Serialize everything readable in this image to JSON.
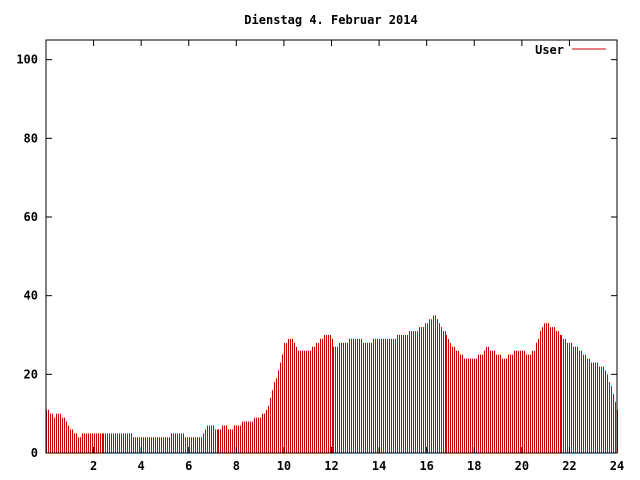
{
  "chart_data": {
    "type": "bar",
    "title": "Dienstag 4. Februar 2014",
    "xlabel": "",
    "ylabel": "",
    "xlim": [
      0,
      24
    ],
    "ylim": [
      0,
      105
    ],
    "xticks": [
      2,
      4,
      6,
      8,
      10,
      12,
      14,
      16,
      18,
      20,
      22,
      24
    ],
    "xtick_labels": [
      "2",
      "4",
      "6",
      "8",
      "10",
      "12",
      "14",
      "16",
      "18",
      "20",
      "22",
      "24"
    ],
    "yticks": [
      0,
      20,
      40,
      60,
      80,
      100
    ],
    "ytick_labels": [
      "0",
      "20",
      "40",
      "60",
      "80",
      "100"
    ],
    "grid": false,
    "legend_position": "top-right",
    "series": [
      {
        "name": "User",
        "color": "#cc0000",
        "keyframes": [
          [
            0.0,
            11
          ],
          [
            0.2,
            10
          ],
          [
            0.3,
            9
          ],
          [
            0.5,
            10
          ],
          [
            0.7,
            9
          ],
          [
            0.9,
            7
          ],
          [
            1.0,
            6
          ],
          [
            1.2,
            5
          ],
          [
            1.4,
            4
          ],
          [
            1.6,
            5
          ],
          [
            2.0,
            5
          ],
          [
            3.0,
            5
          ],
          [
            3.5,
            5
          ],
          [
            3.7,
            4
          ],
          [
            4.0,
            4
          ],
          [
            4.5,
            4
          ],
          [
            5.0,
            4
          ],
          [
            5.5,
            5
          ],
          [
            6.0,
            4
          ],
          [
            6.5,
            4
          ],
          [
            6.8,
            7
          ],
          [
            7.2,
            6
          ],
          [
            7.5,
            7
          ],
          [
            7.8,
            6
          ],
          [
            8.0,
            7
          ],
          [
            8.5,
            8
          ],
          [
            9.0,
            9
          ],
          [
            9.3,
            11
          ],
          [
            9.5,
            16
          ],
          [
            9.8,
            22
          ],
          [
            10.0,
            28
          ],
          [
            10.3,
            29
          ],
          [
            10.6,
            26
          ],
          [
            11.0,
            26
          ],
          [
            11.4,
            28
          ],
          [
            11.7,
            30
          ],
          [
            11.9,
            30
          ],
          [
            12.1,
            27
          ],
          [
            12.5,
            28
          ],
          [
            13.0,
            29
          ],
          [
            13.5,
            28
          ],
          [
            14.0,
            29
          ],
          [
            14.5,
            29
          ],
          [
            15.0,
            30
          ],
          [
            15.5,
            31
          ],
          [
            16.0,
            33
          ],
          [
            16.3,
            35
          ],
          [
            16.6,
            32
          ],
          [
            17.0,
            28
          ],
          [
            17.3,
            26
          ],
          [
            17.6,
            24
          ],
          [
            18.0,
            24
          ],
          [
            18.3,
            25
          ],
          [
            18.5,
            27
          ],
          [
            18.8,
            26
          ],
          [
            19.0,
            25
          ],
          [
            19.3,
            24
          ],
          [
            19.7,
            26
          ],
          [
            20.0,
            26
          ],
          [
            20.2,
            25
          ],
          [
            20.5,
            26
          ],
          [
            20.8,
            32
          ],
          [
            21.0,
            33
          ],
          [
            21.3,
            32
          ],
          [
            21.6,
            30
          ],
          [
            22.0,
            28
          ],
          [
            22.3,
            27
          ],
          [
            22.6,
            25
          ],
          [
            23.0,
            23
          ],
          [
            23.4,
            22
          ],
          [
            23.7,
            18
          ],
          [
            23.9,
            13
          ],
          [
            24.0,
            11
          ]
        ]
      }
    ]
  }
}
